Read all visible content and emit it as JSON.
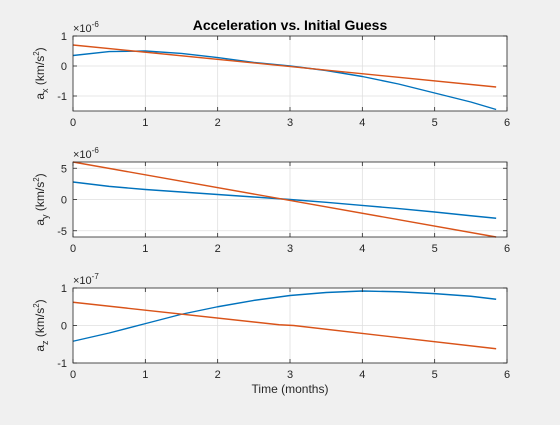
{
  "chart_data": [
    {
      "type": "line",
      "title": "Acceleration vs. Initial Guess",
      "xlabel": "",
      "ylabel": "a_x (km/s^2)",
      "ylabel_main": "a",
      "ylabel_sub": "x",
      "ylabel_unit_pre": " (km/s",
      "ylabel_unit_sup": "2",
      "ylabel_unit_post": ")",
      "exponent_base": "×10",
      "exponent_power": "-6",
      "xlim": [
        0,
        6
      ],
      "ylim": [
        -1.5,
        1
      ],
      "xticks": [
        0,
        1,
        2,
        3,
        4,
        5,
        6
      ],
      "xtick_labels": [
        "0",
        "1",
        "2",
        "3",
        "4",
        "5",
        "6"
      ],
      "yticks": [
        -1,
        0,
        1
      ],
      "ytick_labels": [
        "-1",
        "0",
        "1"
      ],
      "grid": true,
      "series": [
        {
          "color": "#0072BD",
          "x": [
            0,
            0.5,
            1,
            1.5,
            2,
            2.5,
            3,
            3.5,
            4,
            4.5,
            5,
            5.5,
            5.85
          ],
          "y": [
            0.35,
            0.48,
            0.5,
            0.42,
            0.28,
            0.12,
            0.0,
            -0.15,
            -0.35,
            -0.6,
            -0.9,
            -1.2,
            -1.45
          ]
        },
        {
          "color": "#D95319",
          "x": [
            0,
            5.85
          ],
          "y": [
            0.7,
            -0.7
          ]
        }
      ]
    },
    {
      "type": "line",
      "title": "",
      "xlabel": "",
      "ylabel": "a_y (km/s^2)",
      "ylabel_main": "a",
      "ylabel_sub": "y",
      "ylabel_unit_pre": " (km/s",
      "ylabel_unit_sup": "2",
      "ylabel_unit_post": ")",
      "exponent_base": "×10",
      "exponent_power": "-6",
      "xlim": [
        0,
        6
      ],
      "ylim": [
        -6,
        6
      ],
      "xticks": [
        0,
        1,
        2,
        3,
        4,
        5,
        6
      ],
      "xtick_labels": [
        "0",
        "1",
        "2",
        "3",
        "4",
        "5",
        "6"
      ],
      "yticks": [
        -5,
        0,
        5
      ],
      "ytick_labels": [
        "-5",
        "0",
        "5"
      ],
      "grid": true,
      "series": [
        {
          "color": "#0072BD",
          "x": [
            0,
            0.5,
            1,
            1.5,
            2,
            2.5,
            3,
            3.5,
            4,
            4.5,
            5,
            5.5,
            5.85
          ],
          "y": [
            2.8,
            2.1,
            1.6,
            1.2,
            0.8,
            0.4,
            0.0,
            -0.45,
            -0.95,
            -1.45,
            -2.0,
            -2.6,
            -3.0
          ]
        },
        {
          "color": "#D95319",
          "x": [
            0,
            5.85
          ],
          "y": [
            6.0,
            -6.0
          ]
        }
      ]
    },
    {
      "type": "line",
      "title": "",
      "xlabel": "Time (months)",
      "ylabel": "a_z (km/s^2)",
      "ylabel_main": "a",
      "ylabel_sub": "z",
      "ylabel_unit_pre": " (km/s",
      "ylabel_unit_sup": "2",
      "ylabel_unit_post": ")",
      "exponent_base": "×10",
      "exponent_power": "-7",
      "xlim": [
        0,
        6
      ],
      "ylim": [
        -1,
        1
      ],
      "xticks": [
        0,
        1,
        2,
        3,
        4,
        5,
        6
      ],
      "xtick_labels": [
        "0",
        "1",
        "2",
        "3",
        "4",
        "5",
        "6"
      ],
      "yticks": [
        -1,
        0,
        1
      ],
      "ytick_labels": [
        "-1",
        "0",
        "1"
      ],
      "grid": true,
      "series": [
        {
          "color": "#0072BD",
          "x": [
            0,
            0.5,
            1,
            1.5,
            2,
            2.5,
            3,
            3.5,
            4,
            4.5,
            5,
            5.5,
            5.85
          ],
          "y": [
            -0.42,
            -0.2,
            0.05,
            0.3,
            0.5,
            0.67,
            0.8,
            0.88,
            0.92,
            0.9,
            0.85,
            0.78,
            0.7
          ]
        },
        {
          "color": "#D95319",
          "x": [
            0,
            2.85,
            3.05,
            5.85
          ],
          "y": [
            0.62,
            0.02,
            0.0,
            -0.62
          ]
        }
      ]
    }
  ]
}
